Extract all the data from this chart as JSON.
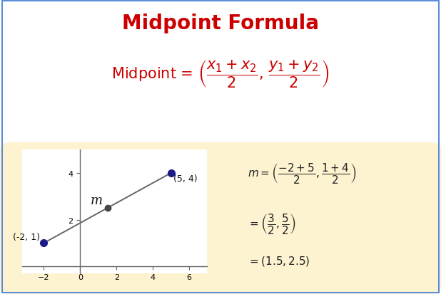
{
  "title": "Midpoint Formula",
  "title_color": "#cc0000",
  "title_fontsize": 20,
  "bg_color": "#ffffff",
  "panel_bg_color": "#fdf3d0",
  "formula_label": "Midpoint = ",
  "formula_color": "#cc0000",
  "formula_fontsize": 15,
  "point1": [
    -2,
    1
  ],
  "point2": [
    5,
    4
  ],
  "midpoint": [
    1.5,
    2.5
  ],
  "point_color_ends": "#1a1a8c",
  "point_color_mid": "#444444",
  "line_color": "#666666",
  "xlim": [
    -3.2,
    7.0
  ],
  "ylim": [
    -0.3,
    5.0
  ],
  "xticks": [
    -2,
    0,
    2,
    4,
    6
  ],
  "yticks": [
    2,
    4
  ],
  "axis_color": "#666666",
  "calc_color": "#222222",
  "calc_fontsize": 11,
  "border_color": "#5b8dd9"
}
